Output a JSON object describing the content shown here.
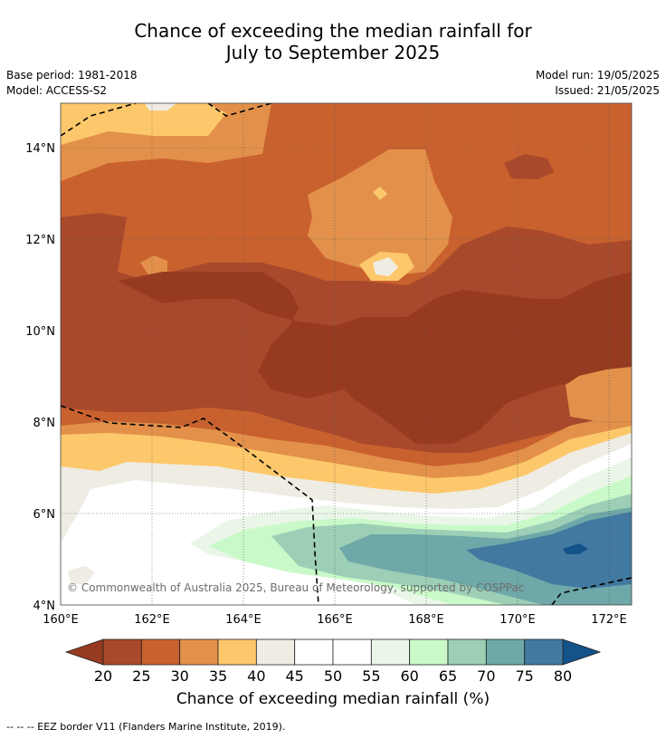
{
  "title_line1": "Chance of exceeding the median rainfall for",
  "title_line2": "July to September 2025",
  "base_period": "Base period: 1981-2018",
  "model": "Model: ACCESS-S2",
  "model_run": "Model run: 19/05/2025",
  "issued": "Issued: 21/05/2025",
  "copyright": "© Commonwealth of Australia 2025, Bureau of Meteorology, supported by COSPPac",
  "x_ticks": [
    "160°E",
    "162°E",
    "164°E",
    "166°E",
    "168°E",
    "170°E",
    "172°E"
  ],
  "y_ticks": [
    "14°N",
    "12°N",
    "10°N",
    "8°N",
    "6°N",
    "4°N"
  ],
  "colorbar": {
    "label": "Chance of exceeding median rainfall (%)",
    "ticks": [
      "20",
      "25",
      "30",
      "35",
      "40",
      "45",
      "50",
      "55",
      "60",
      "65",
      "70",
      "75",
      "80"
    ],
    "colors": [
      "#a8492b",
      "#c9612f",
      "#e3914a",
      "#fdc86b",
      "#efece4",
      "#ffffff",
      "#ffffff",
      "#e9f6e8",
      "#c9f9c9",
      "#9ccfb6",
      "#6fa8a8",
      "#4179a0"
    ],
    "low_end_color": "#963a20",
    "high_end_color": "#14538a"
  },
  "footnote": "--  --  -- EEZ border V11 (Flanders Marine Institute, 2019)."
}
